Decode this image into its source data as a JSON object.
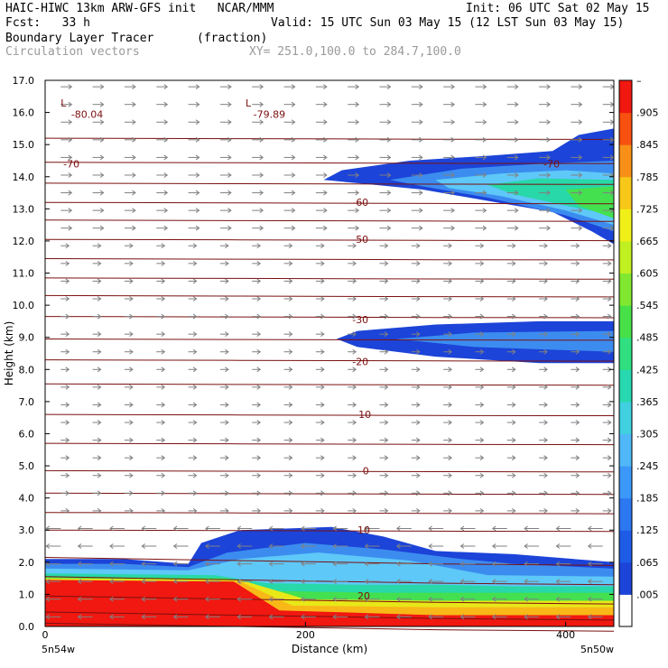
{
  "header": {
    "title_left": "HAIC-HIWC 13km ARW-GFS init   NCAR/MMM",
    "init": "Init: 06 UTC Sat 02 May 15",
    "fcst": "Fcst:   33 h",
    "valid": "Valid: 15 UTC Sun 03 May 15 (12 LST Sun 03 May 15)",
    "field_name": "Boundary Layer Tracer",
    "field_units": "(fraction)",
    "vector_name": "Circulation vectors",
    "xsec_path": "XY= 251.0,100.0 to 284.7,100.0"
  },
  "colors": {
    "contour": "#7a1010",
    "arrow": "#808080",
    "fill_levels": [
      "#1c44d8",
      "#3c8cf0",
      "#5ec8f8",
      "#28d8a8",
      "#44e050",
      "#e8e818",
      "#f8b818",
      "#f85810",
      "#f01810"
    ]
  },
  "chart_data": {
    "type": "heatmap",
    "ylabel": "Height (km)",
    "xlabel": "Distance (km)",
    "ylim": [
      0,
      17
    ],
    "xlim": [
      0,
      437
    ],
    "y_ticks": [
      "0.0",
      "1.0",
      "2.0",
      "3.0",
      "4.0",
      "5.0",
      "6.0",
      "7.0",
      "8.0",
      "9.0",
      "10.0",
      "11.0",
      "12.0",
      "13.0",
      "14.0",
      "15.0",
      "16.0",
      "17.0"
    ],
    "x_ticks": [
      "0",
      "200",
      "400"
    ],
    "x_endpoints": [
      "5n54w",
      "5n50w"
    ],
    "colorbar_labels": [
      "–",
      ".905",
      ".845",
      ".785",
      ".725",
      ".665",
      ".605",
      ".545",
      ".485",
      ".425",
      ".365",
      ".305",
      ".245",
      ".185",
      ".125",
      ".065",
      ".005"
    ],
    "contour_labels": [
      {
        "text": "L",
        "x": 12,
        "y": 16.3
      },
      {
        "text": "-80.04",
        "x": 20,
        "y": 15.95
      },
      {
        "text": "L",
        "x": 154,
        "y": 16.3
      },
      {
        "text": "-79.89",
        "x": 160,
        "y": 15.95
      },
      {
        "text": "-70",
        "x": 14,
        "y": 14.4
      },
      {
        "text": "-70",
        "x": 383,
        "y": 14.4
      },
      {
        "text": "-60",
        "x": 236,
        "y": 13.2
      },
      {
        "text": "-50",
        "x": 236,
        "y": 12.05
      },
      {
        "text": "-30",
        "x": 236,
        "y": 9.55
      },
      {
        "text": "-20",
        "x": 236,
        "y": 8.25
      },
      {
        "text": "-10",
        "x": 238,
        "y": 6.6
      },
      {
        "text": "0",
        "x": 244,
        "y": 4.85
      },
      {
        "text": "10",
        "x": 240,
        "y": 3.0
      },
      {
        "text": "20",
        "x": 240,
        "y": 0.95
      }
    ]
  }
}
